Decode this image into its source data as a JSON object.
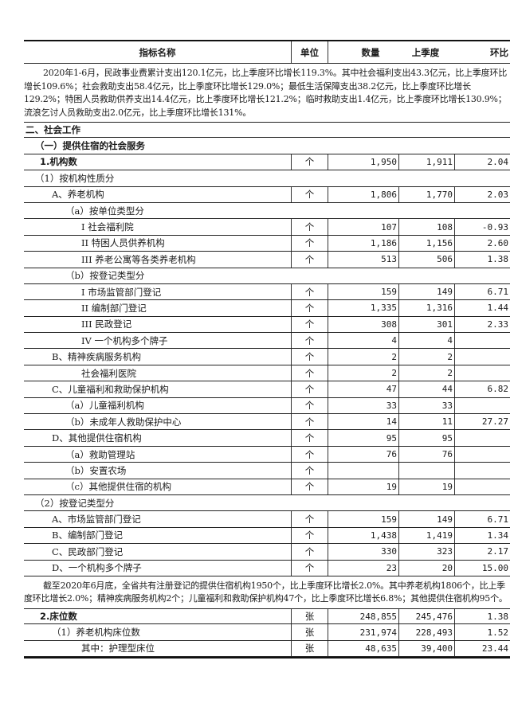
{
  "header": {
    "name": "指标名称",
    "unit": "单位",
    "qty": "数量",
    "prev": "上季度",
    "ratio": "环比"
  },
  "intro_paragraph": "2020年1-6月，民政事业费累计支出120.1亿元，比上季度环比增长119.3%。其中社会福利支出43.3亿元，比上季度环比增长109.6%；社会救助支出58.4亿元，比上季度环比增长129.0%；最低生活保障支出38.2亿元，比上季度环比增长129.2%；特困人员救助供养支出14.4亿元，比上季度环比增长121.2%；临时救助支出1.4亿元，比上季度环比增长130.9%；流浪乞讨人员救助支出2.0亿元，比上季度环比增长131%。",
  "rows_1": [
    {
      "name": "二、社会工作",
      "level": 0,
      "heading": true,
      "bold": true
    },
    {
      "name": "（一）提供住宿的社会服务",
      "level": 1,
      "heading": true,
      "bold": true
    },
    {
      "name": "1.机构数",
      "level": 2,
      "bold": true,
      "unit": "个",
      "qty": "1,950",
      "prev": "1,911",
      "ratio": "2.04"
    },
    {
      "name": "（1）按机构性质分",
      "level": 1,
      "heading": true
    },
    {
      "name": "A、养老机构",
      "level": 3,
      "unit": "个",
      "qty": "1,806",
      "prev": "1,770",
      "ratio": "2.03"
    },
    {
      "name": "（a）按单位类型分",
      "level": 4,
      "heading": true
    },
    {
      "name": "I 社会福利院",
      "level": 5,
      "unit": "个",
      "qty": "107",
      "prev": "108",
      "ratio": "-0.93"
    },
    {
      "name": "II 特困人员供养机构",
      "level": 5,
      "unit": "个",
      "qty": "1,186",
      "prev": "1,156",
      "ratio": "2.60"
    },
    {
      "name": "III 养老公寓等各类养老机构",
      "level": 5,
      "unit": "个",
      "qty": "513",
      "prev": "506",
      "ratio": "1.38"
    },
    {
      "name": "（b）按登记类型分",
      "level": 4,
      "heading": true
    },
    {
      "name": "I 市场监管部门登记",
      "level": 5,
      "unit": "个",
      "qty": "159",
      "prev": "149",
      "ratio": "6.71"
    },
    {
      "name": "II 编制部门登记",
      "level": 5,
      "unit": "个",
      "qty": "1,335",
      "prev": "1,316",
      "ratio": "1.44"
    },
    {
      "name": "III 民政登记",
      "level": 5,
      "unit": "个",
      "qty": "308",
      "prev": "301",
      "ratio": "2.33"
    },
    {
      "name": "IV 一个机构多个牌子",
      "level": 5,
      "unit": "个",
      "qty": "4",
      "prev": "4",
      "ratio": ""
    },
    {
      "name": "B、精神疾病服务机构",
      "level": 3,
      "unit": "个",
      "qty": "2",
      "prev": "2",
      "ratio": ""
    },
    {
      "name": "社会福利医院",
      "level": 5,
      "unit": "个",
      "qty": "2",
      "prev": "2",
      "ratio": ""
    },
    {
      "name": "C、儿童福利和救助保护机构",
      "level": 3,
      "unit": "个",
      "qty": "47",
      "prev": "44",
      "ratio": "6.82"
    },
    {
      "name": "（a）儿童福利机构",
      "level": 4,
      "unit": "个",
      "qty": "33",
      "prev": "33",
      "ratio": ""
    },
    {
      "name": "（b）未成年人救助保护中心",
      "level": 4,
      "unit": "个",
      "qty": "14",
      "prev": "11",
      "ratio": "27.27"
    },
    {
      "name": "D、其他提供住宿机构",
      "level": 3,
      "unit": "个",
      "qty": "95",
      "prev": "95",
      "ratio": ""
    },
    {
      "name": "（a）救助管理站",
      "level": 4,
      "unit": "个",
      "qty": "76",
      "prev": "76",
      "ratio": ""
    },
    {
      "name": "（b）安置农场",
      "level": 4,
      "unit": "个",
      "qty": "",
      "prev": "",
      "ratio": ""
    },
    {
      "name": "（c）其他提供住宿的机构",
      "level": 4,
      "unit": "个",
      "qty": "19",
      "prev": "19",
      "ratio": ""
    },
    {
      "name": "（2）按登记类型分",
      "level": 1,
      "heading": true
    },
    {
      "name": "A、市场监管部门登记",
      "level": 3,
      "unit": "个",
      "qty": "159",
      "prev": "149",
      "ratio": "6.71"
    },
    {
      "name": "B、编制部门登记",
      "level": 3,
      "unit": "个",
      "qty": "1,438",
      "prev": "1,419",
      "ratio": "1.34"
    },
    {
      "name": "C、民政部门登记",
      "level": 3,
      "unit": "个",
      "qty": "330",
      "prev": "323",
      "ratio": "2.17"
    },
    {
      "name": "D、一个机构多个牌子",
      "level": 3,
      "unit": "个",
      "qty": "23",
      "prev": "20",
      "ratio": "15.00"
    }
  ],
  "mid_paragraph": "截至2020年6月底，全省共有注册登记的提供住宿机构1950个，比上季度环比增长2.0%。其中养老机构1806个，比上季度环比增长2.0%；精神疾病服务机构2个；儿童福利和救助保护机构47个，比上季度环比增长6.8%；其他提供住宿机构95个。",
  "rows_2": [
    {
      "name": "2.床位数",
      "level": 2,
      "bold": true,
      "unit": "张",
      "qty": "248,855",
      "prev": "245,476",
      "ratio": "1.38"
    },
    {
      "name": "（1）养老机构床位数",
      "level": 3,
      "unit": "张",
      "qty": "231,974",
      "prev": "228,493",
      "ratio": "1.52"
    },
    {
      "name": "其中：护理型床位",
      "level": 5,
      "unit": "张",
      "qty": "48,635",
      "prev": "39,400",
      "ratio": "23.44"
    }
  ]
}
